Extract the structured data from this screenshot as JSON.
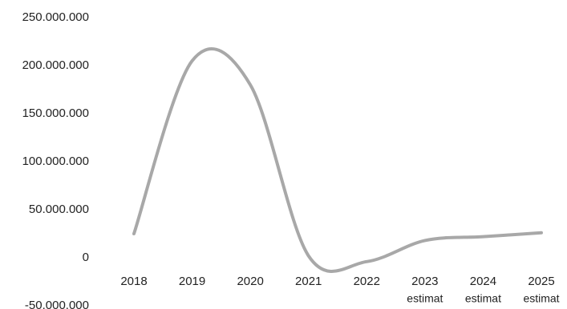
{
  "chart_data": {
    "type": "line",
    "title": "",
    "xlabel": "",
    "ylabel": "",
    "grid": false,
    "legend": "none",
    "ylim": [
      -50000000,
      250000000
    ],
    "y_ticks": [
      {
        "value": 250000000,
        "label": "250.000.000"
      },
      {
        "value": 200000000,
        "label": "200.000.000"
      },
      {
        "value": 150000000,
        "label": "150.000.000"
      },
      {
        "value": 100000000,
        "label": "100.000.000"
      },
      {
        "value": 50000000,
        "label": "50.000.000"
      },
      {
        "value": 0,
        "label": "0"
      },
      {
        "value": -50000000,
        "label": "-50.000.000"
      }
    ],
    "categories": [
      {
        "label": "2018",
        "sublabel": ""
      },
      {
        "label": "2019",
        "sublabel": ""
      },
      {
        "label": "2020",
        "sublabel": ""
      },
      {
        "label": "2021",
        "sublabel": ""
      },
      {
        "label": "2022",
        "sublabel": ""
      },
      {
        "label": "2023",
        "sublabel": "estimat"
      },
      {
        "label": "2024",
        "sublabel": "estimat"
      },
      {
        "label": "2025",
        "sublabel": "estimat"
      }
    ],
    "series": [
      {
        "color": "#a8a8a8",
        "values": [
          25000000,
          205000000,
          180000000,
          2000000,
          -4000000,
          18000000,
          22000000,
          26000000
        ]
      }
    ]
  }
}
